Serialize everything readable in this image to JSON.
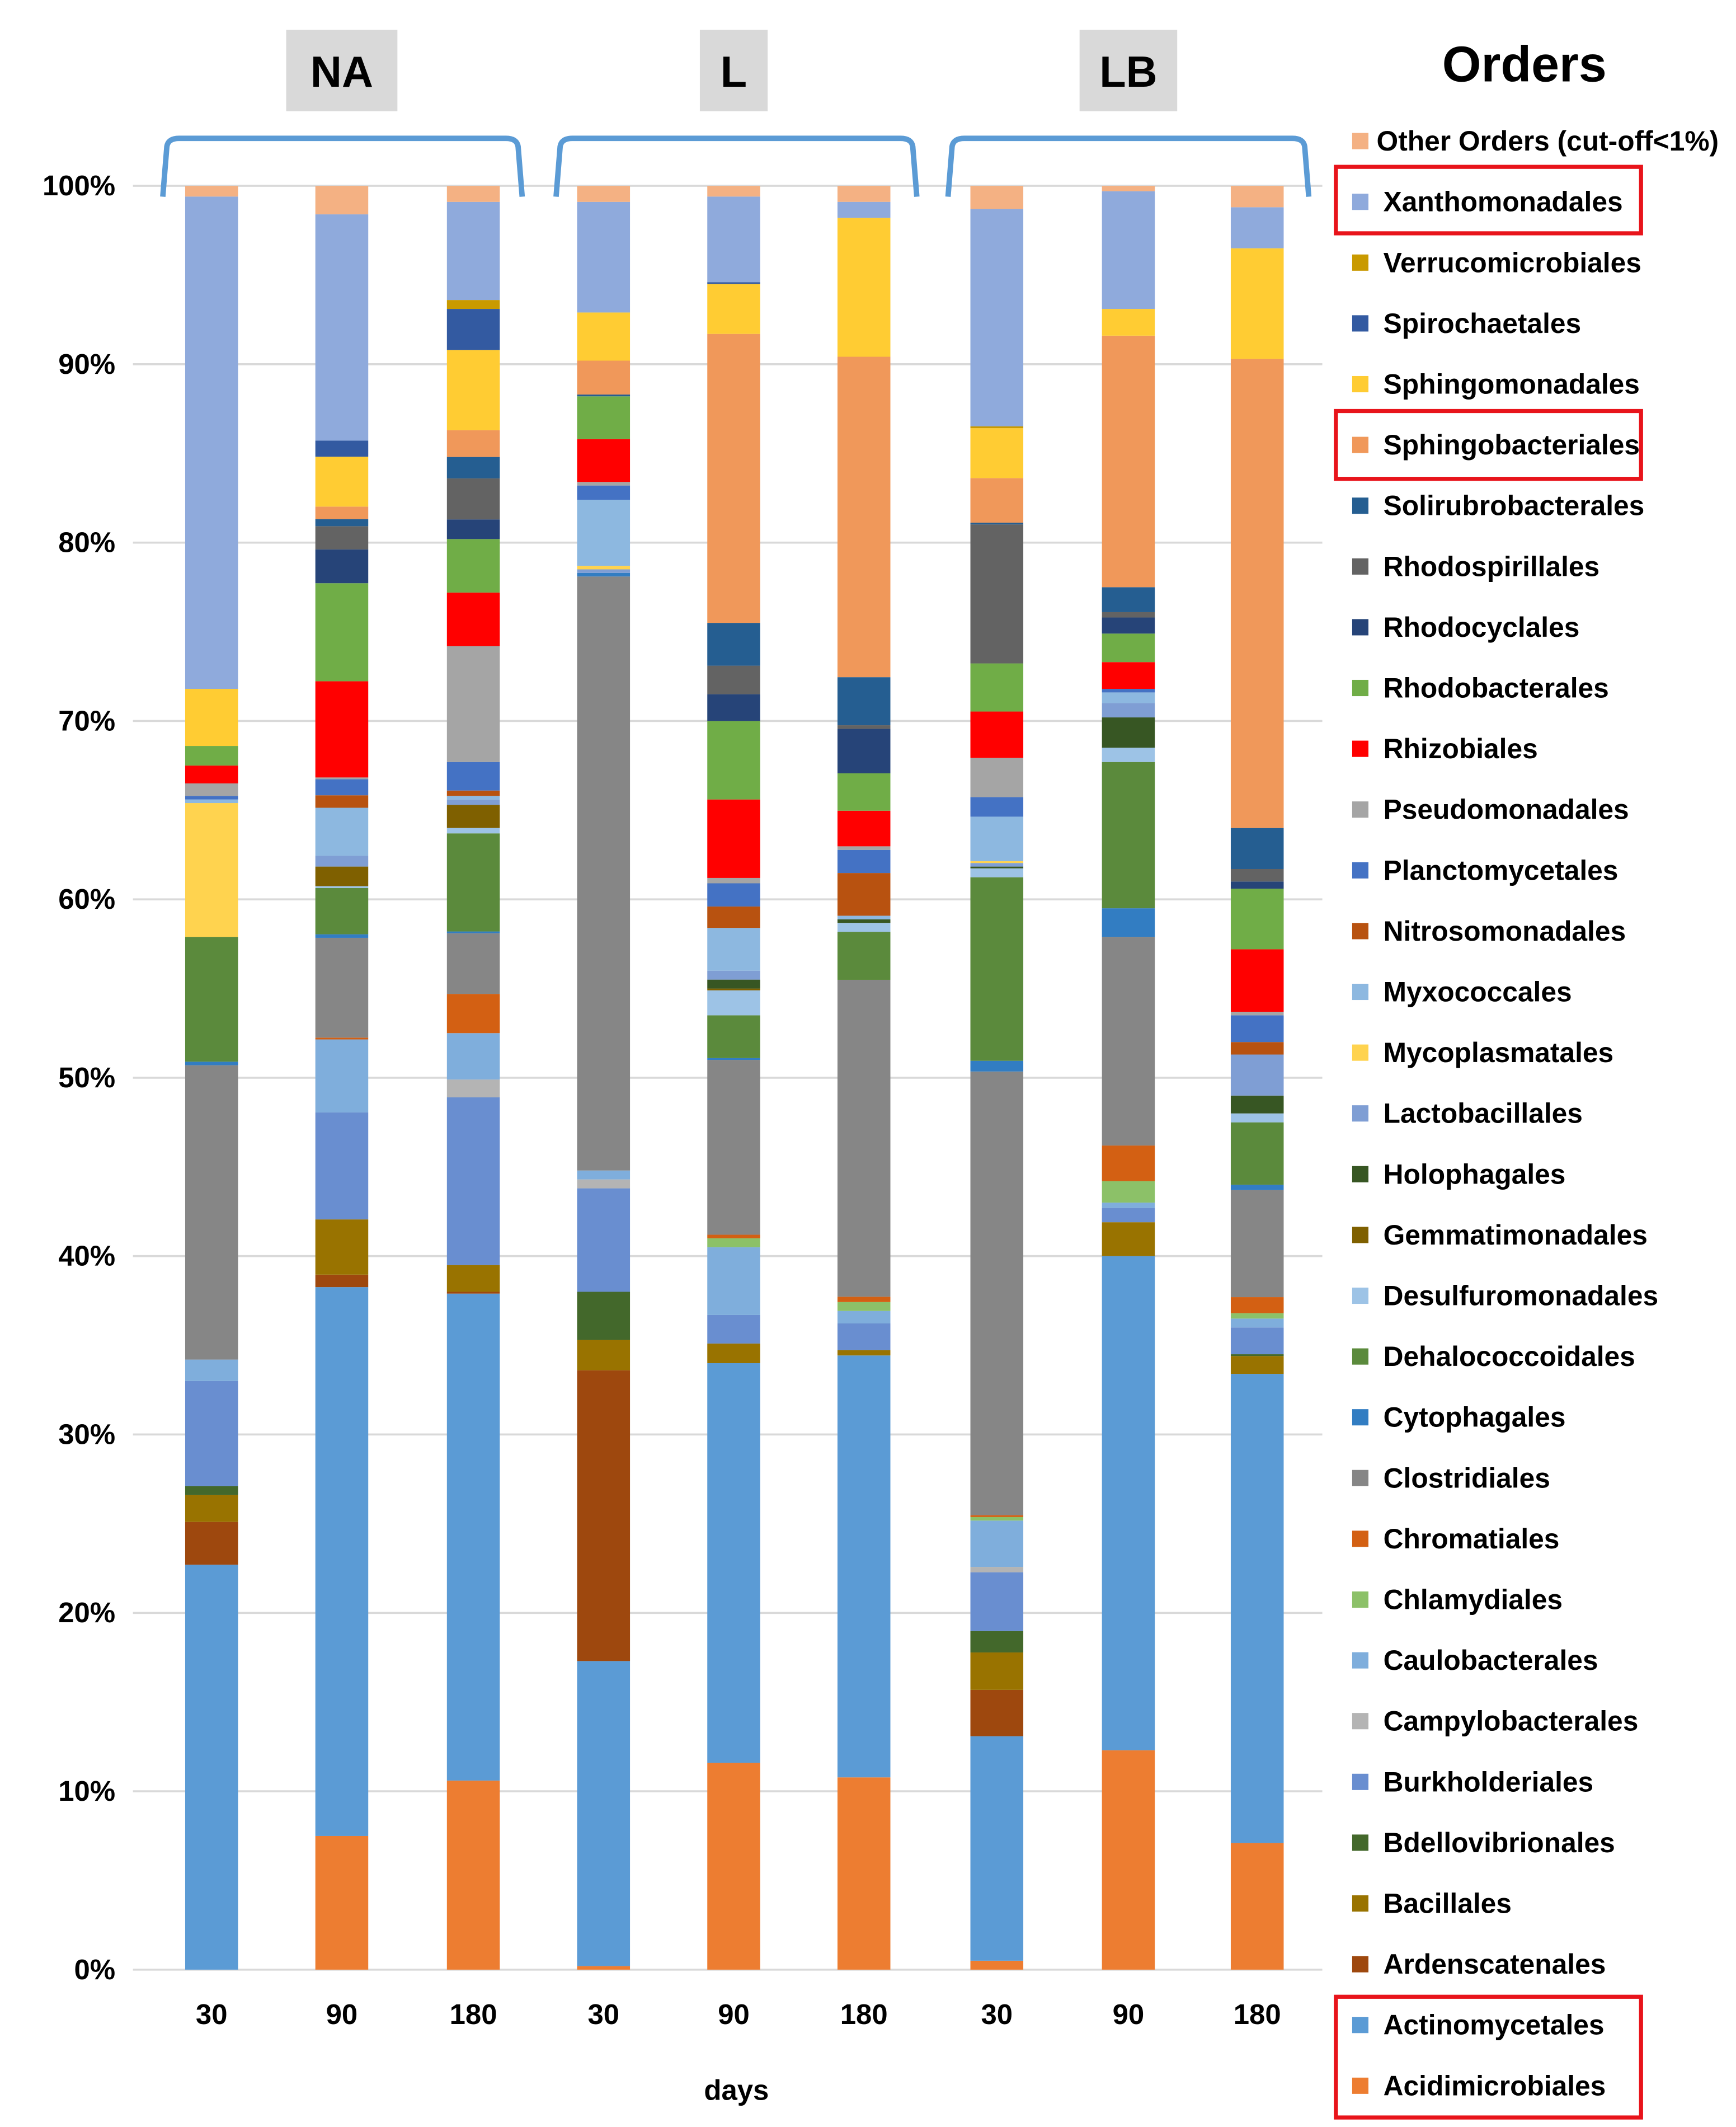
{
  "chart_data": {
    "type": "bar",
    "stacked": true,
    "normalized_percent": true,
    "legend_title": "Orders",
    "legend_position": "right",
    "xlabel": "days",
    "ylabel": "",
    "ylim": [
      0,
      100
    ],
    "y_ticks": [
      "0%",
      "10%",
      "20%",
      "30%",
      "40%",
      "50%",
      "60%",
      "70%",
      "80%",
      "90%",
      "100%"
    ],
    "grid": true,
    "groups": [
      {
        "label": "NA",
        "categories": [
          "30",
          "90",
          "180"
        ]
      },
      {
        "label": "L",
        "categories": [
          "30",
          "90",
          "180"
        ]
      },
      {
        "label": "LB",
        "categories": [
          "30",
          "90",
          "180"
        ]
      }
    ],
    "categories": [
      "30",
      "90",
      "180",
      "30",
      "90",
      "180",
      "30",
      "90",
      "180"
    ],
    "highlighted": [
      "Xanthomonadales",
      "Sphingobacteriales",
      "Actinomycetales",
      "Acidimicrobiales"
    ],
    "bracket_color": "#5B9BD5",
    "highlight_color": "#E8141B",
    "series": [
      {
        "name": "Acidimicrobiales",
        "color": "#ED7D31",
        "values": [
          0,
          7.5,
          10.6,
          0.2,
          11.6,
          10.8,
          0.5,
          12.3,
          7.1
        ]
      },
      {
        "name": "Actinomycetales",
        "color": "#5B9BD5",
        "values": [
          22.7,
          30.8,
          27.3,
          17.1,
          22.4,
          23.7,
          12.6,
          27.7,
          26.3
        ]
      },
      {
        "name": "Ardenscatenales",
        "color": "#9E480E",
        "values": [
          2.4,
          0.7,
          0.1,
          16.3,
          0,
          0,
          2.6,
          0,
          0
        ]
      },
      {
        "name": "Bacillales",
        "color": "#997300",
        "values": [
          1.5,
          3.1,
          1.5,
          1.7,
          1.1,
          0.3,
          2.1,
          1.9,
          1.0
        ]
      },
      {
        "name": "Bdellovibrionales",
        "color": "#43682B",
        "values": [
          0.5,
          0,
          0,
          2.7,
          0,
          0,
          1.2,
          0,
          0.1
        ]
      },
      {
        "name": "Burkholderiales",
        "color": "#698ED0",
        "values": [
          5.9,
          6.0,
          9.4,
          5.8,
          1.6,
          1.5,
          3.3,
          0.8,
          1.5
        ]
      },
      {
        "name": "Campylobacterales",
        "color": "#B4B4B4",
        "values": [
          0,
          0,
          1.0,
          0.5,
          0,
          0,
          0.3,
          0,
          0
        ]
      },
      {
        "name": "Caulobacterales",
        "color": "#7FAEDC",
        "values": [
          1.2,
          4.1,
          2.6,
          0.5,
          3.8,
          0.7,
          2.6,
          0.3,
          0.5
        ]
      },
      {
        "name": "Chlamydiales",
        "color": "#8CC168",
        "values": [
          0,
          0,
          0,
          0,
          0.5,
          0.5,
          0.2,
          1.2,
          0.3
        ]
      },
      {
        "name": "Chromatiales",
        "color": "#D36013",
        "values": [
          0,
          0.1,
          2.2,
          0,
          0.2,
          0.3,
          0.1,
          2.0,
          0.9
        ]
      },
      {
        "name": "Clostridiales",
        "color": "#868686",
        "values": [
          16.5,
          5.6,
          3.4,
          33.3,
          9.8,
          17.8,
          24.9,
          11.7,
          6.0
        ]
      },
      {
        "name": "Cytophagales",
        "color": "#327DC2",
        "values": [
          0.2,
          0.2,
          0.1,
          0.2,
          0.1,
          0,
          0.6,
          1.6,
          0.3
        ]
      },
      {
        "name": "Dehalococcoidales",
        "color": "#5B8A3C",
        "values": [
          7.0,
          2.6,
          5.5,
          0,
          2.4,
          2.7,
          10.3,
          8.2,
          3.5
        ]
      },
      {
        "name": "Desulfuromonadales",
        "color": "#9DC3E6",
        "values": [
          0,
          0.1,
          0.3,
          0,
          1.4,
          0.5,
          0.5,
          0.8,
          0.5
        ]
      },
      {
        "name": "Gemmatimonadales",
        "color": "#7F6000",
        "values": [
          0,
          1.1,
          1.3,
          0,
          0.1,
          0,
          0,
          0,
          0
        ]
      },
      {
        "name": "Holophagales",
        "color": "#375623",
        "values": [
          0,
          0,
          0,
          0,
          0.5,
          0.2,
          0.1,
          1.7,
          1.0
        ]
      },
      {
        "name": "Lactobacillales",
        "color": "#7F9ED4",
        "values": [
          0,
          0.6,
          0.3,
          0.2,
          0.5,
          0,
          0.2,
          0.8,
          2.3
        ]
      },
      {
        "name": "Mycoplasmatales",
        "color": "#FFD34F",
        "values": [
          7.5,
          0,
          0,
          0.2,
          0,
          0,
          0.1,
          0,
          0
        ]
      },
      {
        "name": "Myxococcales",
        "color": "#8DB8E0",
        "values": [
          0.2,
          2.7,
          0.2,
          3.7,
          2.4,
          0.2,
          2.5,
          0.6,
          0
        ]
      },
      {
        "name": "Nitrosomonadales",
        "color": "#B85210",
        "values": [
          0,
          0.7,
          0.3,
          0,
          1.2,
          2.4,
          0,
          0,
          0.7
        ]
      },
      {
        "name": "Planctomycetales",
        "color": "#4472C4",
        "values": [
          0.2,
          0.9,
          1.6,
          0.8,
          1.3,
          1.3,
          1.1,
          0.2,
          1.5
        ]
      },
      {
        "name": "Pseudomonadales",
        "color": "#A5A5A5",
        "values": [
          0.7,
          0.1,
          6.5,
          0.2,
          0.3,
          0.2,
          2.2,
          0,
          0.2
        ]
      },
      {
        "name": "Rhizobiales",
        "color": "#FF0000",
        "values": [
          1.0,
          5.4,
          3.0,
          2.4,
          4.4,
          2.0,
          2.6,
          1.5,
          3.5
        ]
      },
      {
        "name": "Rhodobacterales",
        "color": "#70AD47",
        "values": [
          1.1,
          5.5,
          3.0,
          2.4,
          4.4,
          2.1,
          2.7,
          1.6,
          3.4
        ]
      },
      {
        "name": "Rhodocyclales",
        "color": "#264478",
        "values": [
          0,
          1.9,
          1.1,
          0,
          1.5,
          2.5,
          0,
          0.9,
          0.4
        ]
      },
      {
        "name": "Rhodospirillales",
        "color": "#636363",
        "values": [
          0,
          1.3,
          2.3,
          0,
          1.6,
          0.2,
          7.8,
          0.3,
          0.7
        ]
      },
      {
        "name": "Solirubrobacterales",
        "color": "#255E91",
        "values": [
          0,
          0.4,
          1.2,
          0.1,
          2.4,
          2.7,
          0.1,
          1.4,
          2.3
        ]
      },
      {
        "name": "Sphingobacteriales",
        "color": "#F0985A",
        "values": [
          0,
          0.7,
          1.5,
          1.9,
          16.2,
          18.0,
          2.5,
          14.1,
          26.3
        ]
      },
      {
        "name": "Sphingomonadales",
        "color": "#FFCC33",
        "values": [
          3.2,
          2.8,
          4.5,
          2.7,
          2.8,
          7.8,
          2.8,
          1.5,
          6.2
        ]
      },
      {
        "name": "Spirochaetales",
        "color": "#335AA1",
        "values": [
          0,
          0.9,
          2.3,
          0,
          0.1,
          0,
          0,
          0,
          0
        ]
      },
      {
        "name": "Verrucomicrobiales",
        "color": "#C99A00",
        "values": [
          0,
          0,
          0.5,
          0,
          0,
          0,
          0.1,
          0,
          0
        ]
      },
      {
        "name": "Xanthomonadales",
        "color": "#8FAADC",
        "values": [
          27.6,
          12.7,
          5.5,
          6.2,
          4.8,
          0.9,
          12.2,
          6.6,
          2.3
        ]
      },
      {
        "name": "Other Orders (cut-off<1%)",
        "color": "#F4B183",
        "values": [
          0.6,
          1.6,
          0.9,
          0.9,
          0.6,
          0.9,
          1.3,
          0.3,
          1.2
        ]
      }
    ]
  }
}
